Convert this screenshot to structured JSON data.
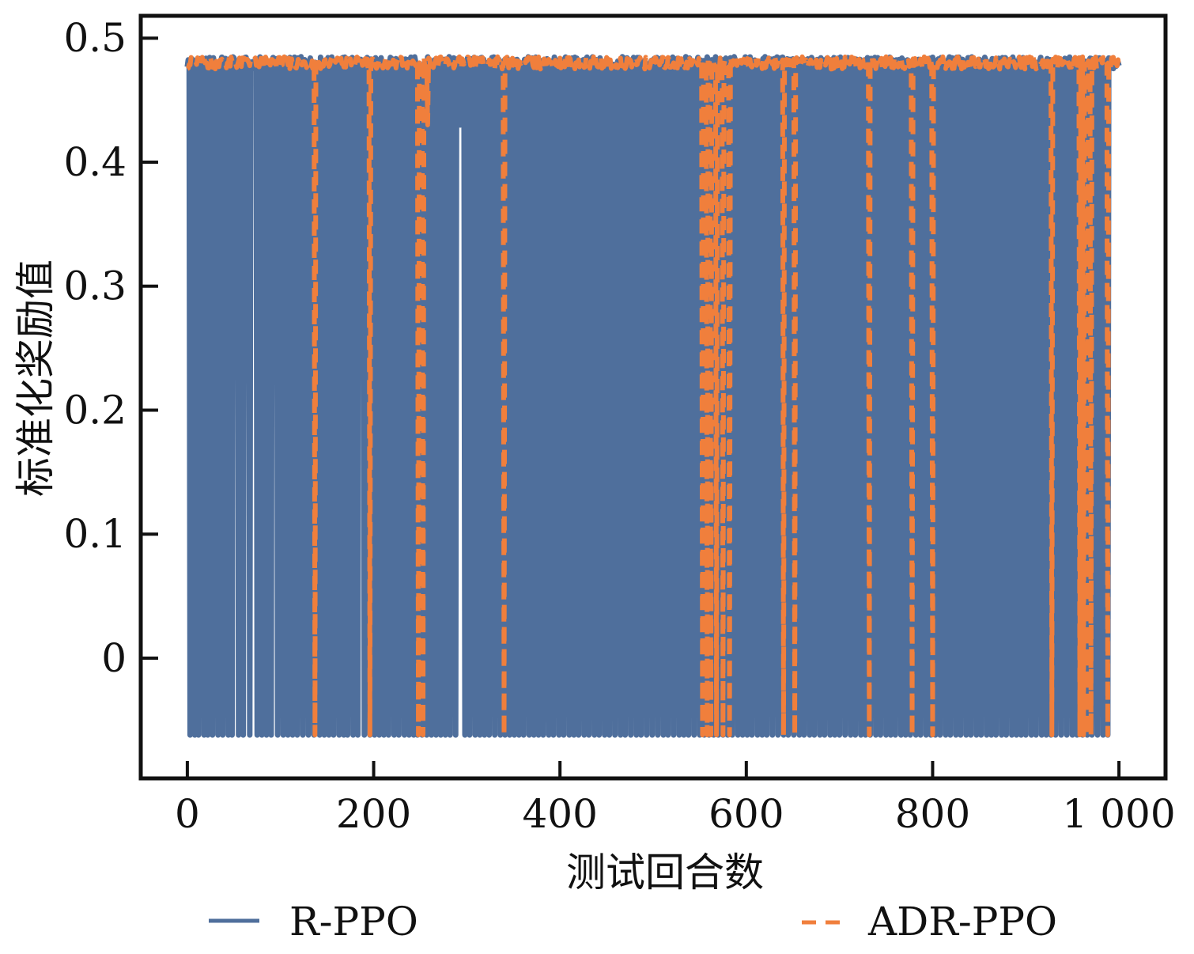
{
  "chart_data": {
    "type": "line",
    "title": "",
    "xlabel": "测试回合数",
    "ylabel": "标准化奖励值",
    "xlim": [
      -50,
      1050
    ],
    "ylim": [
      -0.097,
      0.518
    ],
    "xticks": [
      0,
      200,
      400,
      600,
      800,
      1000
    ],
    "xtick_labels": [
      "0",
      "200",
      "400",
      "600",
      "800",
      "1 000"
    ],
    "yticks": [
      0,
      0.1,
      0.2,
      0.3,
      0.4,
      0.5
    ],
    "ytick_labels": [
      "0",
      "0.1",
      "0.2",
      "0.3",
      "0.4",
      "0.5"
    ],
    "grid": false,
    "legend_position": "bottom",
    "colors": {
      "R-PPO": "#4f6f9c",
      "ADR-PPO": "#f07f3c"
    },
    "series": [
      {
        "name": "R-PPO",
        "style": "solid",
        "x_range": [
          0,
          1000
        ],
        "baseline": 0.48,
        "low_value": -0.062,
        "dip_episodes": [
          3,
          8,
          12,
          18,
          22,
          27,
          33,
          38,
          44,
          48,
          55,
          60,
          67,
          75,
          80,
          85,
          90,
          97,
          103,
          108,
          113,
          118,
          124,
          130,
          136,
          142,
          147,
          152,
          157,
          163,
          168,
          172,
          178,
          183,
          190,
          196,
          201,
          206,
          211,
          216,
          222,
          227,
          233,
          238,
          243,
          247,
          252,
          257,
          262,
          267,
          272,
          277,
          282,
          288,
          293,
          298,
          303,
          309,
          314,
          319,
          324,
          330,
          336,
          341,
          346,
          351,
          356,
          361,
          367,
          372,
          377,
          382,
          388,
          393,
          399,
          404,
          410,
          415,
          420,
          426,
          431,
          437,
          442,
          448,
          453,
          459,
          465,
          470,
          476,
          482,
          487,
          493,
          499,
          505,
          511,
          516,
          522,
          528,
          533,
          538,
          544,
          550,
          555,
          560,
          565,
          570,
          575,
          580,
          585,
          591,
          596,
          601,
          606,
          612,
          617,
          622,
          628,
          634,
          640,
          645,
          651,
          657,
          662,
          668,
          673,
          679,
          684,
          690,
          695,
          700,
          706,
          712,
          717,
          723,
          728,
          733,
          739,
          744,
          750,
          755,
          760,
          766,
          771,
          776,
          782,
          787,
          793,
          798,
          803,
          808,
          814,
          819,
          825,
          830,
          836,
          841,
          847,
          852,
          858,
          863,
          868,
          874,
          879,
          885,
          890,
          895,
          900,
          906,
          911,
          917,
          922,
          927,
          932,
          938,
          944,
          950,
          955,
          961,
          966,
          971,
          977,
          983,
          988
        ],
        "partial_dips": [
          {
            "x": 192,
            "value": 0.425
          },
          {
            "x": 293,
            "value": 0.43
          },
          {
            "x": 888,
            "value": 0.43
          }
        ]
      },
      {
        "name": "ADR-PPO",
        "style": "dashed",
        "x_range": [
          0,
          1000
        ],
        "baseline": 0.48,
        "low_value": -0.062,
        "dip_episodes": [
          137,
          196,
          248,
          253,
          340,
          553,
          558,
          562,
          568,
          575,
          582,
          640,
          652,
          732,
          778,
          800,
          928,
          958,
          962,
          966,
          970,
          988
        ],
        "partial_dips": [
          {
            "x": 258,
            "value": 0.43
          }
        ]
      }
    ]
  }
}
